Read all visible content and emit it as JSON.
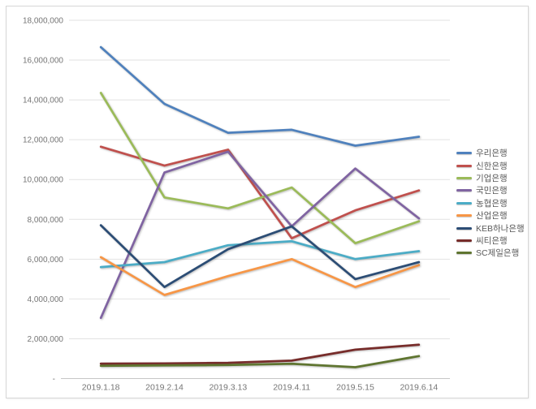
{
  "window": {
    "background": "#ffffff",
    "frame_border_color": "#d6d6d6"
  },
  "chart_data": {
    "type": "line",
    "title": "",
    "xlabel": "",
    "ylabel": "",
    "grid": true,
    "legend_position": "right",
    "ylim": [
      0,
      18000000
    ],
    "y_tick_interval": 2000000,
    "axis_text_color": "#757575",
    "legend_text_color": "#595959",
    "gridline_color": "#e2e2e2",
    "axis_line_color": "#c6c6c6",
    "categories": [
      "2019.1.18",
      "2019.2.14",
      "2019.3.13",
      "2019.4.11",
      "2019.5.15",
      "2019.6.14"
    ],
    "y_ticks": [
      {
        "value": 18000000,
        "label": "18,000,000"
      },
      {
        "value": 16000000,
        "label": "16,000,000"
      },
      {
        "value": 14000000,
        "label": "14,000,000"
      },
      {
        "value": 12000000,
        "label": "12,000,000"
      },
      {
        "value": 10000000,
        "label": "10,000,000"
      },
      {
        "value": 8000000,
        "label": "8,000,000"
      },
      {
        "value": 6000000,
        "label": "6,000,000"
      },
      {
        "value": 4000000,
        "label": "4,000,000"
      },
      {
        "value": 2000000,
        "label": "2,000,000"
      },
      {
        "value": 0,
        "label": "-"
      }
    ],
    "series": [
      {
        "name": "우리은행",
        "color": "#4F81BD",
        "values": [
          16650000,
          13800000,
          12350000,
          12500000,
          11700000,
          12150000
        ]
      },
      {
        "name": "신한은행",
        "color": "#C0504D",
        "values": [
          11650000,
          10700000,
          11500000,
          7050000,
          8450000,
          9450000
        ]
      },
      {
        "name": "기업은행",
        "color": "#9BBB59",
        "values": [
          14350000,
          9100000,
          8550000,
          9600000,
          6800000,
          7900000
        ]
      },
      {
        "name": "국민은행",
        "color": "#8064A2",
        "values": [
          3050000,
          10350000,
          11400000,
          7650000,
          10550000,
          8050000
        ]
      },
      {
        "name": "농협은행",
        "color": "#4BACC6",
        "values": [
          5600000,
          5850000,
          6700000,
          6900000,
          6000000,
          6400000
        ]
      },
      {
        "name": "산업은행",
        "color": "#F79646",
        "values": [
          6100000,
          4200000,
          5150000,
          6000000,
          4600000,
          5700000
        ]
      },
      {
        "name": "KEB하나은행",
        "color": "#2C4D75",
        "values": [
          7700000,
          4600000,
          6500000,
          7650000,
          5000000,
          5850000
        ]
      },
      {
        "name": "씨티은행",
        "color": "#772C2A",
        "values": [
          750000,
          760000,
          790000,
          900000,
          1450000,
          1700000
        ]
      },
      {
        "name": "SC제일은행",
        "color": "#5F7530",
        "values": [
          640000,
          660000,
          680000,
          740000,
          570000,
          1130000
        ]
      }
    ]
  }
}
